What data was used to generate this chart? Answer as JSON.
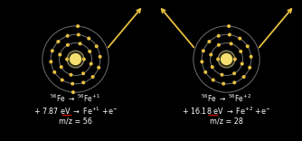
{
  "bg_color": "#000000",
  "text_color": "#ffffff",
  "atom_color": "#e8c040",
  "nucleus_color": "#f5e070",
  "orbit_color": "#707070",
  "arrow_color": "#e8c040",
  "underline_color": "#cc1100",
  "left_label": "$^{56}$Fe $\\rightarrow$ $^{56}$Fe$^{+1}$",
  "left_eq_line1": "+ 7.87 eV $\\rightarrow$ Fe$^{+1}$ +e$^{-}$",
  "left_eq_line2": "m/z = 56",
  "right_label": "$^{56}$Fe $\\rightarrow$ $^{56}$Fe$^{+2}$",
  "right_eq_line1": "+ 16.18 eV $\\rightarrow$ Fe$^{+2}$ +e$^{-}$",
  "right_eq_line2": "m/z = 28",
  "orbit_radii": [
    0.06,
    0.115,
    0.175,
    0.235
  ],
  "electrons_per_orbit": [
    2,
    8,
    14,
    2
  ],
  "nucleus_r": 0.038,
  "electron_r": 0.013,
  "fontsize_label": 5.5,
  "fontsize_eq": 5.8
}
